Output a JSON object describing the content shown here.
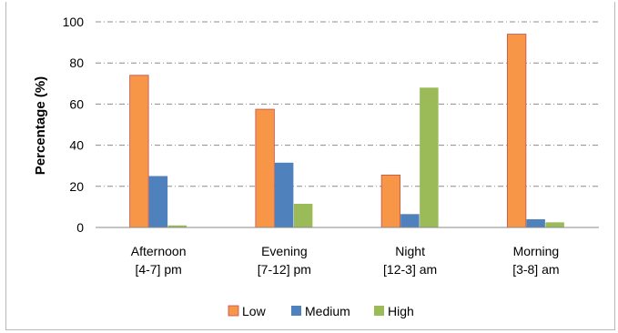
{
  "chart_data": {
    "type": "bar",
    "ylabel": "Percentage (%)",
    "ylim": [
      0,
      100
    ],
    "yticks": [
      "0",
      "20",
      "40",
      "60",
      "80",
      "100"
    ],
    "grid": true,
    "legend_position": "bottom",
    "categories": [
      [
        "Afternoon",
        "[4-7] pm"
      ],
      [
        "Evening",
        "[7-12] pm"
      ],
      [
        "Night",
        "[12-3] am"
      ],
      [
        "Morning",
        "[3-8] am"
      ]
    ],
    "series": [
      {
        "name": "Low",
        "color": "#f79646",
        "values": [
          74,
          57.5,
          25.5,
          94
        ]
      },
      {
        "name": "Medium",
        "color": "#4f81bd",
        "values": [
          25,
          31.5,
          6.5,
          4
        ]
      },
      {
        "name": "High",
        "color": "#9bbb59",
        "values": [
          1,
          11.5,
          68,
          2.5
        ]
      }
    ]
  }
}
